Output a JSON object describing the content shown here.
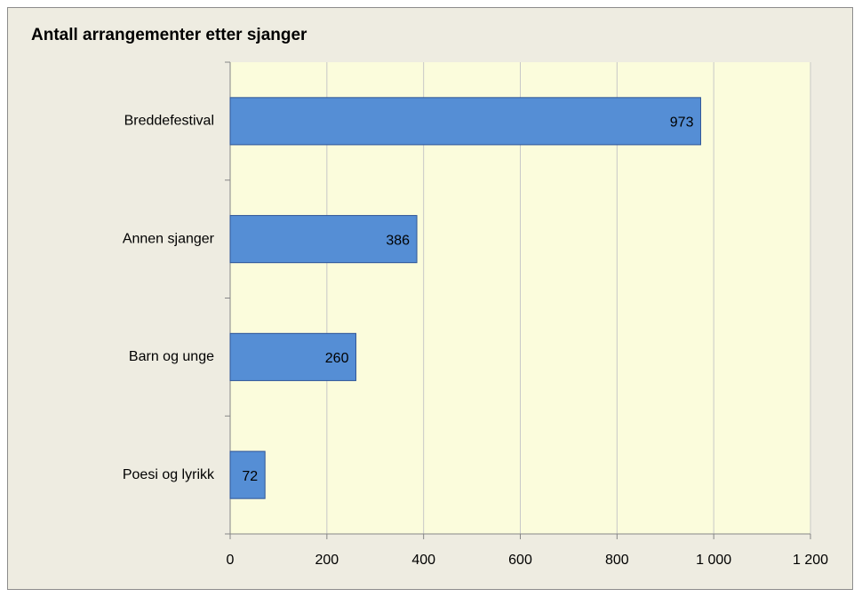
{
  "chart_data": {
    "type": "bar",
    "orientation": "horizontal",
    "title": "Antall arrangementer etter sjanger",
    "categories": [
      "Breddefestival",
      "Annen sjanger",
      "Barn og unge",
      "Poesi og lyrikk"
    ],
    "values": [
      973,
      386,
      260,
      72
    ],
    "color": "#558ed5",
    "xlim": [
      0,
      1200
    ],
    "xticks": [
      0,
      200,
      400,
      600,
      800,
      {
        "value": 1000,
        "label": "1 000"
      },
      {
        "value": 1200,
        "label": "1 200"
      }
    ],
    "grid": true
  }
}
